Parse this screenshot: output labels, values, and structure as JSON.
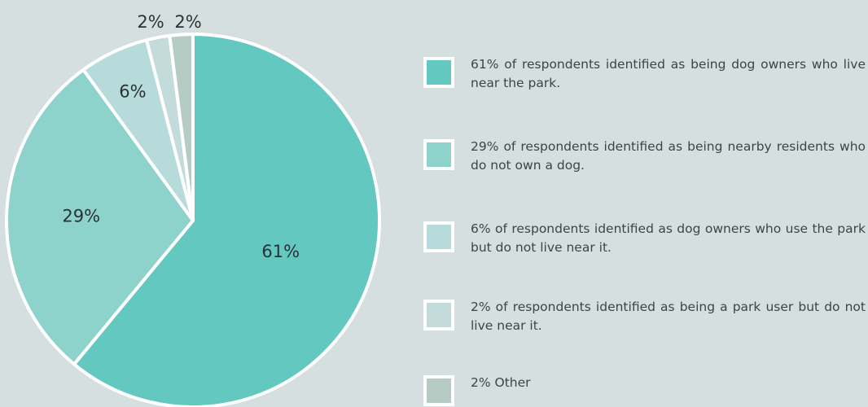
{
  "chart_data": {
    "type": "pie",
    "slices": [
      {
        "label": "61%",
        "value": 61,
        "color": "#63c8c0"
      },
      {
        "label": "29%",
        "value": 29,
        "color": "#8ed2cc"
      },
      {
        "label": "6%",
        "value": 6,
        "color": "#b6dbda"
      },
      {
        "label": "2%",
        "value": 2,
        "color": "#c4dbdb"
      },
      {
        "label": "2%",
        "value": 2,
        "color": "#b6cbc3"
      }
    ],
    "legend": [
      {
        "text": "61% of respondents identified as being dog owners who live near the park.",
        "color": "#63c8c0"
      },
      {
        "text": "29% of respondents identified as being nearby residents who do not own a dog.",
        "color": "#8ed2cc"
      },
      {
        "text": "6% of respondents identified as dog owners who use the park but do not live near it.",
        "color": "#b6dbda"
      },
      {
        "text": "2% of respondents identified as being a park user but do not live near it.",
        "color": "#c4dbdb"
      },
      {
        "text": "2% Other",
        "color": "#b6cbc3"
      }
    ],
    "legend_position": "right",
    "start_angle": "12 o'clock",
    "direction": "clockwise"
  }
}
